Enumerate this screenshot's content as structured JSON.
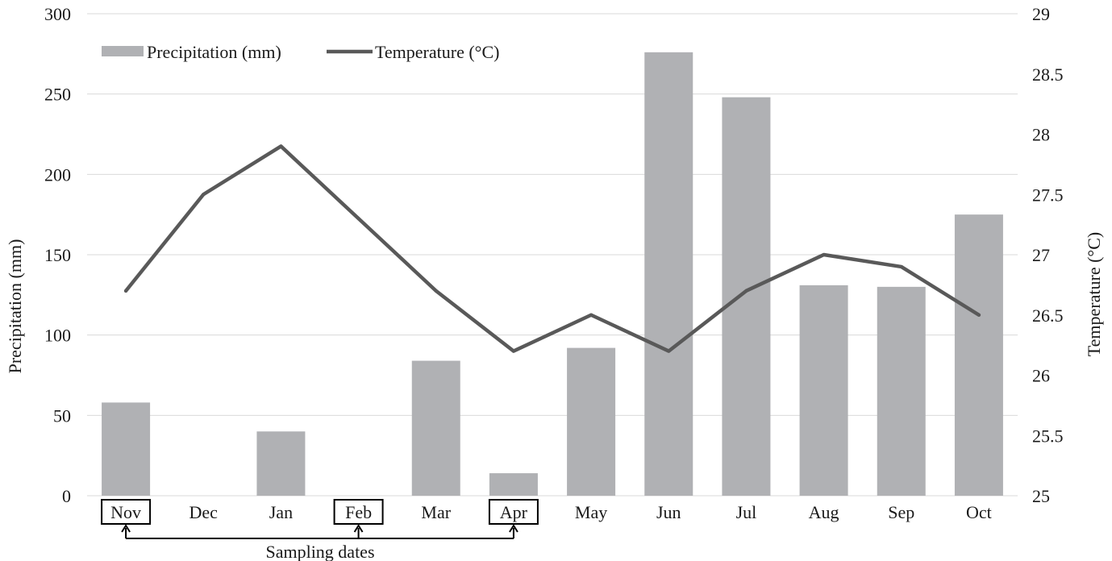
{
  "chart_data": {
    "type": "bar",
    "categories": [
      "Nov",
      "Dec",
      "Jan",
      "Feb",
      "Mar",
      "Apr",
      "May",
      "Jun",
      "Jul",
      "Aug",
      "Sep",
      "Oct"
    ],
    "series": [
      {
        "name": "Precipitation (mm)",
        "type": "bar",
        "axis": "left",
        "values": [
          58,
          0,
          40,
          0,
          84,
          14,
          92,
          276,
          248,
          131,
          130,
          175
        ],
        "color": "#b0b1b4"
      },
      {
        "name": "Temperature (°C)",
        "type": "line",
        "axis": "right",
        "values": [
          26.7,
          27.5,
          27.9,
          27.3,
          26.7,
          26.2,
          26.5,
          26.2,
          26.7,
          27.0,
          26.9,
          26.5
        ],
        "color": "#595959"
      }
    ],
    "ylabel": "Precipitation (mm)",
    "ylabel_right": "Temperature (°C)",
    "ylim": [
      0,
      300
    ],
    "ylim_right": [
      25,
      29
    ],
    "yticks": [
      "0",
      "50",
      "100",
      "150",
      "200",
      "250",
      "300"
    ],
    "yticks_right": [
      "25",
      "25.5",
      "26",
      "26.5",
      "27",
      "27.5",
      "28",
      "28.5",
      "29"
    ],
    "grid": true,
    "legend_position": "top-left",
    "highlighted_categories": [
      "Nov",
      "Feb",
      "Apr"
    ],
    "annotation": "Sampling dates"
  }
}
